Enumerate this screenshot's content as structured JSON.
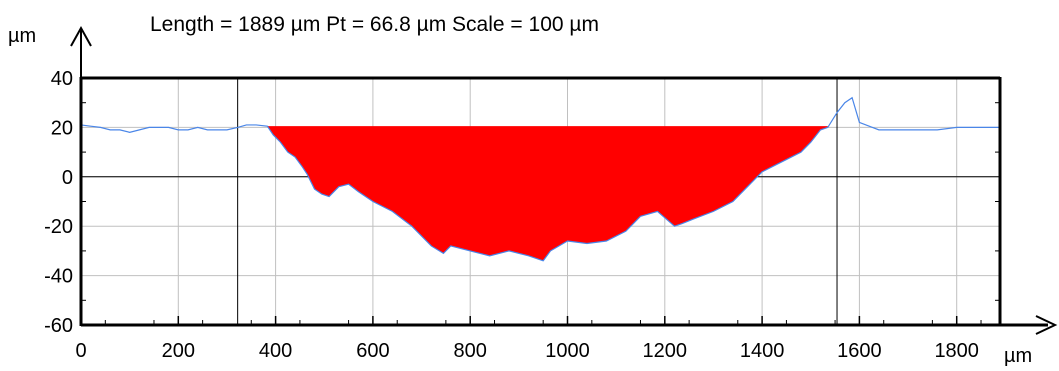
{
  "header": {
    "title": "Length = 1889 µm  Pt = 66.8 µm  Scale = 100 µm",
    "y_unit": "µm",
    "x_unit": "µm"
  },
  "chart_data": {
    "type": "area",
    "title": "Length = 1889 µm  Pt = 66.8 µm  Scale = 100 µm",
    "xlabel": "µm",
    "ylabel": "µm",
    "xlim": [
      0,
      1889
    ],
    "ylim": [
      -60,
      40
    ],
    "x_ticks": [
      0,
      200,
      400,
      600,
      800,
      1000,
      1200,
      1400,
      1600,
      1800
    ],
    "y_ticks": [
      40,
      20,
      0,
      -20,
      -40,
      -60
    ],
    "grid": true,
    "reference_lines_x": [
      322,
      1554
    ],
    "fill_level": 20.5,
    "fill_range": [
      383,
      1535
    ],
    "colors": {
      "profile": "#4a86e8",
      "fill": "#ff0000",
      "axis": "#000000",
      "grid": "#c0c0c0"
    },
    "series": [
      {
        "x": [
          0,
          20,
          40,
          60,
          80,
          100,
          120,
          140,
          160,
          180,
          200,
          220,
          240,
          260,
          280,
          300,
          322,
          340,
          360,
          383,
          395,
          410,
          425,
          440,
          455,
          465,
          480,
          495,
          510,
          530,
          550,
          570,
          600,
          640,
          680,
          720,
          745,
          760,
          800,
          840,
          880,
          920,
          950,
          965,
          1000,
          1040,
          1080,
          1120,
          1150,
          1185,
          1220,
          1235,
          1260,
          1300,
          1340,
          1370,
          1400,
          1430,
          1460,
          1480,
          1500,
          1520,
          1535,
          1554,
          1570,
          1585,
          1600,
          1640,
          1680,
          1720,
          1760,
          1800,
          1840,
          1889
        ],
        "y": [
          21,
          20.5,
          20,
          19,
          19,
          18,
          19,
          20,
          20,
          20,
          19,
          19,
          20,
          19,
          19,
          19,
          20,
          21,
          21,
          20.5,
          17,
          14,
          10,
          8,
          4,
          1,
          -5,
          -7,
          -8,
          -4,
          -3,
          -6,
          -10,
          -14,
          -20,
          -28,
          -31,
          -28,
          -30,
          -32,
          -30,
          -32,
          -34,
          -30,
          -26,
          -27,
          -26,
          -22,
          -16,
          -14,
          -20,
          -19,
          -17,
          -14,
          -10,
          -4,
          2,
          5,
          8,
          10,
          14,
          19,
          20,
          26,
          30,
          32,
          22,
          19,
          19,
          19,
          19,
          20,
          20,
          20
        ]
      }
    ]
  }
}
